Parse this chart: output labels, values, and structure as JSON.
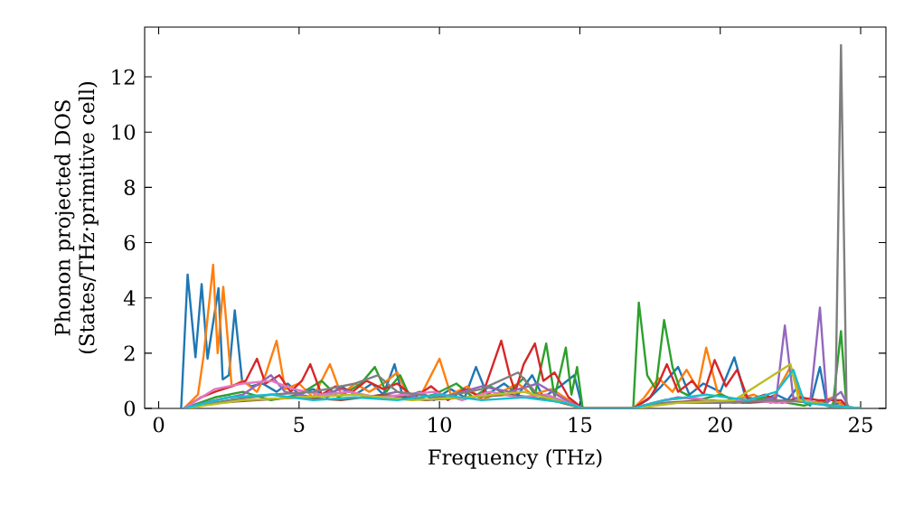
{
  "chart_data": {
    "type": "line",
    "xlabel": "Frequency (THz)",
    "ylabel": "Phonon projected DOS (States/THz·primitive cell)",
    "xlim": [
      -0.5,
      25.9
    ],
    "ylim": [
      0,
      13.8
    ],
    "xticks": [
      0,
      5,
      10,
      15,
      20,
      25
    ],
    "yticks": [
      0,
      2,
      4,
      6,
      8,
      10,
      12
    ],
    "marker": "none",
    "line_style": "solid",
    "series": [
      {
        "color": "#1f77b4",
        "x": [
          0.8,
          1.03,
          1.31,
          1.53,
          1.74,
          2.13,
          2.28,
          2.5,
          2.71,
          2.97,
          3.3,
          3.7,
          4.2,
          4.6,
          5.0,
          5.5,
          6.0,
          6.5,
          7.0,
          7.6,
          8.0,
          8.4,
          8.7,
          9.3,
          9.8,
          10.4,
          10.9,
          11.3,
          11.7,
          12.3,
          12.8,
          13.3,
          13.7,
          14.3,
          14.8,
          15.1,
          16.9,
          17.4,
          17.9,
          18.5,
          18.9,
          19.4,
          20.0,
          20.5,
          20.9,
          21.5,
          22.0,
          22.4,
          22.7,
          23.2,
          23.55,
          23.8,
          24.3,
          24.6,
          25
        ],
        "values": [
          0,
          4.85,
          1.85,
          4.5,
          1.8,
          4.35,
          1.05,
          1.2,
          3.55,
          1.0,
          0.8,
          0.9,
          0.6,
          0.9,
          0.5,
          0.7,
          0.4,
          0.8,
          0.5,
          0.9,
          0.5,
          1.6,
          0.4,
          0.6,
          0.3,
          0.7,
          0.4,
          1.5,
          0.5,
          0.9,
          0.5,
          1.2,
          0.4,
          0.8,
          1.2,
          0,
          0,
          0.3,
          0.8,
          1.5,
          0.5,
          0.9,
          0.6,
          1.85,
          0.4,
          0.3,
          0.5,
          0.3,
          0.7,
          0.1,
          1.5,
          0.1,
          0.2,
          0,
          0
        ]
      },
      {
        "color": "#ff7f0e",
        "x": [
          0.9,
          1.4,
          1.6,
          1.94,
          2.1,
          2.3,
          2.6,
          3.0,
          3.5,
          3.8,
          4.2,
          4.5,
          5.0,
          5.5,
          6.1,
          6.5,
          7.0,
          7.5,
          8.0,
          8.5,
          8.9,
          9.4,
          10.0,
          10.4,
          11.0,
          11.5,
          12.2,
          12.8,
          13.3,
          14.0,
          14.6,
          15.1,
          16.9,
          17.3,
          17.8,
          18.3,
          18.8,
          19.2,
          19.5,
          19.9,
          20.4,
          21.2,
          21.8,
          22.5,
          22.9,
          23.5,
          24.0,
          24.5,
          25
        ],
        "values": [
          0,
          0.5,
          1.9,
          5.2,
          2.0,
          4.4,
          0.8,
          1.0,
          0.6,
          1.2,
          2.45,
          0.7,
          0.9,
          0.4,
          1.6,
          0.5,
          0.9,
          0.6,
          0.9,
          1.3,
          0.4,
          0.6,
          1.8,
          0.5,
          0.8,
          0.3,
          0.6,
          0.9,
          0.5,
          0.7,
          0.3,
          0,
          0,
          0.4,
          1.1,
          0.6,
          1.4,
          0.7,
          2.2,
          0.6,
          0.3,
          0.5,
          0.2,
          1.5,
          0.3,
          0.2,
          0.4,
          0,
          0
        ]
      },
      {
        "color": "#2ca02c",
        "x": [
          0.9,
          2.0,
          3.0,
          4.0,
          5.0,
          5.8,
          6.4,
          7.2,
          7.7,
          8.1,
          8.6,
          9.0,
          9.8,
          10.6,
          11.2,
          11.8,
          12.4,
          13.0,
          13.4,
          13.8,
          14.1,
          14.5,
          14.7,
          14.9,
          15.1,
          16.9,
          17.1,
          17.4,
          17.7,
          18.0,
          18.3,
          18.6,
          19.2,
          20.0,
          20.8,
          21.6,
          22.4,
          23.0,
          23.6,
          24.0,
          24.3,
          24.5,
          25
        ],
        "values": [
          0,
          0.4,
          0.6,
          0.3,
          0.5,
          1.0,
          0.4,
          0.9,
          1.5,
          0.6,
          1.2,
          0.3,
          0.5,
          0.9,
          0.4,
          0.8,
          0.5,
          1.1,
          0.5,
          2.35,
          0.4,
          2.2,
          0.5,
          1.5,
          0,
          0,
          3.83,
          1.2,
          0.7,
          3.2,
          1.5,
          0.6,
          0.3,
          0.5,
          0.2,
          0.4,
          0.2,
          0.1,
          0.3,
          0,
          2.8,
          0,
          0
        ]
      },
      {
        "color": "#d62728",
        "x": [
          0.9,
          1.5,
          2.0,
          2.6,
          3.1,
          3.5,
          3.8,
          4.3,
          4.7,
          5.1,
          5.4,
          5.8,
          6.3,
          6.9,
          7.4,
          8.0,
          8.5,
          9.1,
          9.7,
          10.3,
          10.9,
          11.5,
          12.2,
          12.5,
          12.7,
          13.0,
          13.4,
          13.7,
          14.1,
          14.6,
          15.1,
          16.9,
          17.5,
          17.8,
          18.1,
          18.5,
          19.0,
          19.4,
          19.8,
          20.2,
          20.6,
          21.0,
          21.6,
          22.2,
          22.8,
          23.5,
          24.3,
          24.6,
          25
        ],
        "values": [
          0,
          0.4,
          0.6,
          0.8,
          1.0,
          1.8,
          0.9,
          1.2,
          0.6,
          1.0,
          1.6,
          0.5,
          0.8,
          0.6,
          1.0,
          0.7,
          0.9,
          0.4,
          0.8,
          0.3,
          0.7,
          0.4,
          2.45,
          1.2,
          0.6,
          1.6,
          2.35,
          1.0,
          1.3,
          0.4,
          0,
          0,
          0.4,
          0.9,
          1.6,
          0.6,
          1.0,
          0.5,
          1.75,
          0.8,
          1.4,
          0.3,
          0.5,
          0.2,
          0.4,
          0.3,
          0.3,
          0,
          0
        ]
      },
      {
        "color": "#9467bd",
        "x": [
          0.9,
          2.0,
          3.0,
          4.0,
          4.5,
          5.5,
          6.5,
          7.5,
          8.5,
          9.5,
          10.5,
          11.5,
          12.5,
          13.5,
          14.5,
          15.1,
          16.9,
          17.6,
          18.5,
          19.5,
          20.5,
          21.5,
          22.0,
          22.3,
          22.6,
          23.2,
          23.55,
          23.8,
          24.3,
          24.6,
          25
        ],
        "values": [
          0,
          0.3,
          0.5,
          1.2,
          0.6,
          0.4,
          0.7,
          0.4,
          0.6,
          0.3,
          0.5,
          0.8,
          0.6,
          0.9,
          0.3,
          0,
          0,
          0.2,
          0.4,
          0.3,
          0.2,
          0.3,
          0.4,
          3.0,
          0.4,
          0.2,
          3.65,
          0.2,
          0.6,
          0,
          0
        ]
      },
      {
        "color": "#8c564b",
        "x": [
          0.9,
          2.0,
          3.5,
          5.0,
          6.5,
          8.0,
          9.5,
          11.0,
          12.5,
          14.0,
          15.1,
          16.9,
          18.0,
          19.5,
          21.0,
          22.5,
          24.0,
          25
        ],
        "values": [
          0,
          0.2,
          0.3,
          0.4,
          0.3,
          0.5,
          0.3,
          0.4,
          0.5,
          0.3,
          0,
          0,
          0.2,
          0.3,
          0.2,
          0.3,
          0.1,
          0
        ]
      },
      {
        "color": "#e377c2",
        "x": [
          0.9,
          2.0,
          3.0,
          4.0,
          4.8,
          5.8,
          6.8,
          7.8,
          8.8,
          9.8,
          10.8,
          11.8,
          12.8,
          13.8,
          14.6,
          15.1,
          16.9,
          18.0,
          19.0,
          20.0,
          21.0,
          22.0,
          23.0,
          24.0,
          25
        ],
        "values": [
          0,
          0.7,
          0.9,
          1.0,
          0.7,
          0.5,
          0.6,
          0.4,
          0.5,
          0.6,
          0.3,
          0.6,
          0.4,
          0.5,
          0.2,
          0,
          0,
          0.3,
          0.4,
          0.2,
          0.3,
          0.2,
          0.3,
          0.1,
          0
        ]
      },
      {
        "color": "#7f7f7f",
        "x": [
          0.9,
          2.5,
          4.0,
          5.5,
          7.0,
          7.8,
          8.5,
          10.0,
          11.5,
          12.8,
          13.5,
          14.5,
          15.1,
          16.9,
          18.0,
          20.0,
          22.0,
          23.5,
          24.1,
          24.3,
          24.5,
          25
        ],
        "values": [
          0,
          0.3,
          0.5,
          0.6,
          0.9,
          1.2,
          0.6,
          0.4,
          0.7,
          1.3,
          0.5,
          0.2,
          0,
          0,
          0.2,
          0.2,
          0.3,
          0.2,
          0,
          13.15,
          0,
          0
        ]
      },
      {
        "color": "#bcbd22",
        "x": [
          0.9,
          3.0,
          5.0,
          7.0,
          9.0,
          11.0,
          13.0,
          14.5,
          15.1,
          16.9,
          18.5,
          20.5,
          22.5,
          22.8,
          24.0,
          25
        ],
        "values": [
          0,
          0.3,
          0.4,
          0.5,
          0.3,
          0.4,
          0.6,
          0.2,
          0,
          0,
          0.2,
          0.3,
          1.6,
          0.3,
          0.1,
          0
        ]
      },
      {
        "color": "#17becf",
        "x": [
          0.9,
          2.5,
          4.0,
          5.5,
          7.0,
          8.5,
          10.0,
          11.5,
          13.0,
          14.5,
          15.1,
          16.9,
          18.0,
          19.5,
          21.0,
          22.0,
          22.6,
          23.0,
          24.0,
          25
        ],
        "values": [
          0,
          0.4,
          0.5,
          0.3,
          0.4,
          0.3,
          0.5,
          0.3,
          0.4,
          0.2,
          0,
          0,
          0.3,
          0.5,
          0.3,
          0.6,
          1.4,
          0.2,
          0.1,
          0
        ]
      }
    ]
  }
}
